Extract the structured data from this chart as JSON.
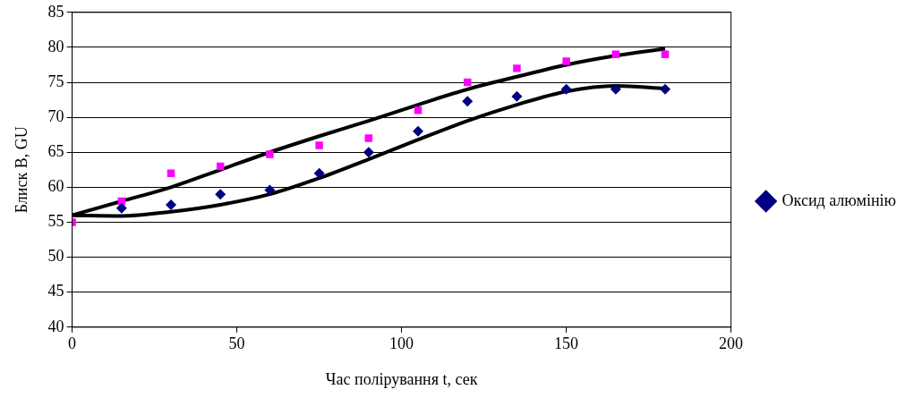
{
  "chart_data": {
    "type": "scatter",
    "xlabel": "Час полірування t, сек",
    "ylabel": "Блиск B, GU",
    "xlim": [
      0,
      200
    ],
    "xticks": [
      0,
      50,
      100,
      150,
      200
    ],
    "ylim": [
      40,
      85
    ],
    "yticks": [
      40,
      45,
      50,
      55,
      60,
      65,
      70,
      75,
      80,
      85
    ],
    "grid": "y",
    "legend": "right",
    "series": [
      {
        "name": "Оксид алюмінію",
        "color": "#000080",
        "marker": "diamond",
        "x": [
          15,
          30,
          45,
          60,
          75,
          90,
          105,
          120,
          135,
          150,
          165,
          180
        ],
        "values": [
          57,
          57.5,
          59,
          59.6,
          62,
          65,
          68,
          72.3,
          73,
          74,
          74,
          74
        ]
      },
      {
        "color": "#ff00ff",
        "marker": "square",
        "x": [
          0,
          15,
          30,
          45,
          60,
          75,
          90,
          105,
          120,
          135,
          150,
          165,
          180
        ],
        "values": [
          55,
          58,
          62,
          63,
          64.7,
          66,
          67,
          71,
          75,
          77,
          78,
          79,
          79
        ]
      },
      {
        "type": "line",
        "color": "#000000",
        "marker": "none",
        "x": [
          0,
          15,
          30,
          45,
          60,
          75,
          90,
          105,
          120,
          135,
          150,
          165,
          180
        ],
        "values": [
          56,
          58,
          60,
          62.5,
          65,
          67.3,
          69.5,
          71.8,
          74,
          75.8,
          77.5,
          78.8,
          79.8
        ]
      },
      {
        "type": "line",
        "color": "#000000",
        "marker": "none",
        "x": [
          0,
          15,
          30,
          45,
          60,
          75,
          90,
          105,
          120,
          135,
          150,
          165,
          180
        ],
        "values": [
          56,
          55.9,
          56.5,
          57.5,
          59,
          61.3,
          64,
          66.8,
          69.5,
          71.8,
          73.7,
          74.5,
          74.1
        ]
      }
    ]
  }
}
